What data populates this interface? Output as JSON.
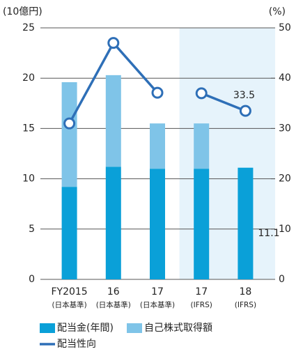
{
  "chart_data": {
    "type": "bar_line",
    "y_axis_label": "(10億円)",
    "y2_axis_label": "(%)",
    "categories": [
      "FY2015",
      "16",
      "17",
      "17",
      "18"
    ],
    "category_sublabels": [
      "(日本基準)",
      "(日本基準)",
      "(日本基準)",
      "(IFRS)",
      "(IFRS)"
    ],
    "shaded_categories": [
      3,
      4
    ],
    "shade_color": "#e6f3fb",
    "ylim": [
      0,
      25
    ],
    "yticks": [
      0,
      5,
      10,
      15,
      20,
      25
    ],
    "y2lim": [
      0,
      50
    ],
    "y2ticks": [
      0,
      10,
      20,
      30,
      40,
      50
    ],
    "grid": true,
    "series": [
      {
        "name": "配当金(年間)",
        "type": "bar",
        "color": "#0aa0d8",
        "values": [
          9.2,
          11.2,
          11.0,
          11.0,
          11.1
        ],
        "value_labels": [
          null,
          null,
          null,
          null,
          "11.1"
        ]
      },
      {
        "name": "自己株式取得額",
        "type": "bar",
        "color": "#7fc4e8",
        "values": [
          10.4,
          9.1,
          4.5,
          4.5,
          null
        ]
      },
      {
        "name": "配当性向",
        "type": "line",
        "axis": "y2",
        "color": "#2e6fb7",
        "values": [
          31.0,
          47.0,
          37.1,
          37.0,
          33.5
        ],
        "value_labels": [
          null,
          null,
          null,
          null,
          "33.5"
        ],
        "break_before": [
          3
        ]
      }
    ]
  }
}
